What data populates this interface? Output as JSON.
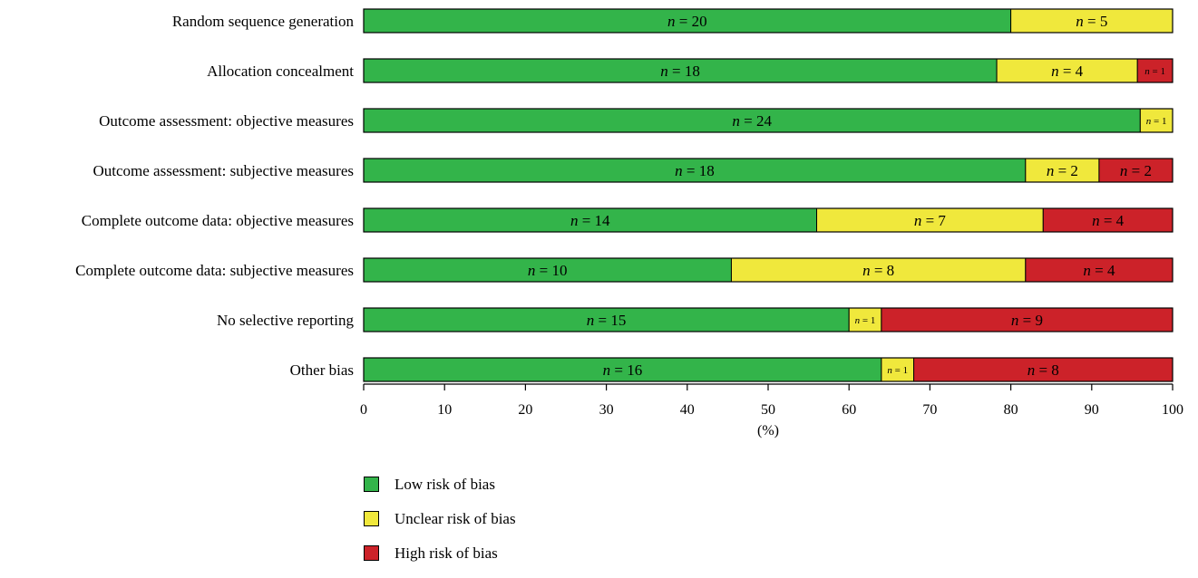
{
  "chart_data": {
    "type": "bar",
    "orientation": "horizontal",
    "stacked": true,
    "categories": [
      "Random sequence generation",
      "Allocation concealment",
      "Outcome assessment: objective measures",
      "Outcome assessment: subjective measures",
      "Complete outcome data: objective measures",
      "Complete outcome data: subjective measures",
      "No selective reporting",
      "Other bias"
    ],
    "series": [
      {
        "name": "Low risk of bias",
        "color": "#33b44a",
        "counts": [
          20,
          18,
          24,
          18,
          14,
          10,
          15,
          16
        ]
      },
      {
        "name": "Unclear risk of bias",
        "color": "#f0e83c",
        "counts": [
          5,
          4,
          1,
          2,
          7,
          8,
          1,
          1
        ]
      },
      {
        "name": "High risk of bias",
        "color": "#cc2229",
        "counts": [
          0,
          1,
          0,
          2,
          4,
          4,
          9,
          8
        ]
      }
    ],
    "xlabel": "(%)",
    "xlim": [
      0,
      100
    ],
    "xticks": [
      0,
      10,
      20,
      30,
      40,
      50,
      60,
      70,
      80,
      90,
      100
    ],
    "label_prefix": "n = ",
    "legend_position": "bottom"
  }
}
